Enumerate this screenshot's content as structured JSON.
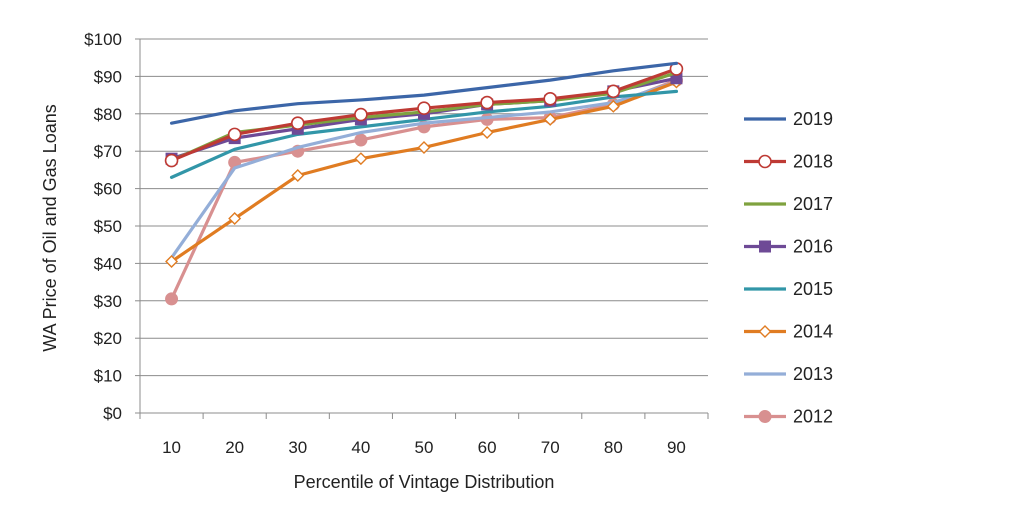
{
  "chart_data": {
    "type": "line",
    "title": "",
    "xlabel": "Percentile of Vintage Distribution",
    "ylabel": "WA Price of Oil and Gas Loans",
    "x": [
      10,
      20,
      30,
      40,
      50,
      60,
      70,
      80,
      90
    ],
    "ylim": [
      0,
      100
    ],
    "yticks": [
      0,
      10,
      20,
      30,
      40,
      50,
      60,
      70,
      80,
      90,
      100
    ],
    "ytick_labels": [
      "$0",
      "$10",
      "$20",
      "$30",
      "$40",
      "$50",
      "$60",
      "$70",
      "$80",
      "$90",
      "$100"
    ],
    "xtick_labels": [
      "10",
      "20",
      "30",
      "40",
      "50",
      "60",
      "70",
      "80",
      "90"
    ],
    "grid": "horizontal",
    "legend_position": "right",
    "series": [
      {
        "name": "2019",
        "color": "#3c66a8",
        "marker": "none",
        "values": [
          77.5,
          80.8,
          82.7,
          83.7,
          85.0,
          87.0,
          89.0,
          91.5,
          93.5
        ]
      },
      {
        "name": "2018",
        "color": "#be3a34",
        "marker": "circle-open",
        "values": [
          67.5,
          74.5,
          77.5,
          79.8,
          81.5,
          83.0,
          84.0,
          86.0,
          92.0
        ]
      },
      {
        "name": "2017",
        "color": "#7fa23f",
        "marker": "none",
        "values": [
          67.5,
          75.0,
          77.0,
          79.0,
          80.5,
          82.5,
          83.5,
          85.5,
          91.0
        ]
      },
      {
        "name": "2016",
        "color": "#6e4a96",
        "marker": "square",
        "values": [
          68.0,
          73.5,
          76.0,
          78.5,
          80.0,
          82.5,
          83.5,
          86.0,
          89.5
        ]
      },
      {
        "name": "2015",
        "color": "#3296a8",
        "marker": "none",
        "values": [
          63.0,
          70.5,
          74.5,
          76.5,
          78.5,
          80.5,
          82.0,
          84.5,
          86.0
        ]
      },
      {
        "name": "2014",
        "color": "#e07c22",
        "marker": "diamond-open",
        "values": [
          40.5,
          52.0,
          63.5,
          68.0,
          71.0,
          75.0,
          78.5,
          82.0,
          88.5
        ]
      },
      {
        "name": "2013",
        "color": "#94aed8",
        "marker": "none",
        "values": [
          41.5,
          65.5,
          71.0,
          75.0,
          77.5,
          79.0,
          80.5,
          83.0,
          88.5
        ]
      },
      {
        "name": "2012",
        "color": "#d89090",
        "marker": "circle",
        "values": [
          30.5,
          67.0,
          70.0,
          73.0,
          76.5,
          78.5,
          79.0,
          82.5,
          89.0
        ]
      }
    ]
  }
}
